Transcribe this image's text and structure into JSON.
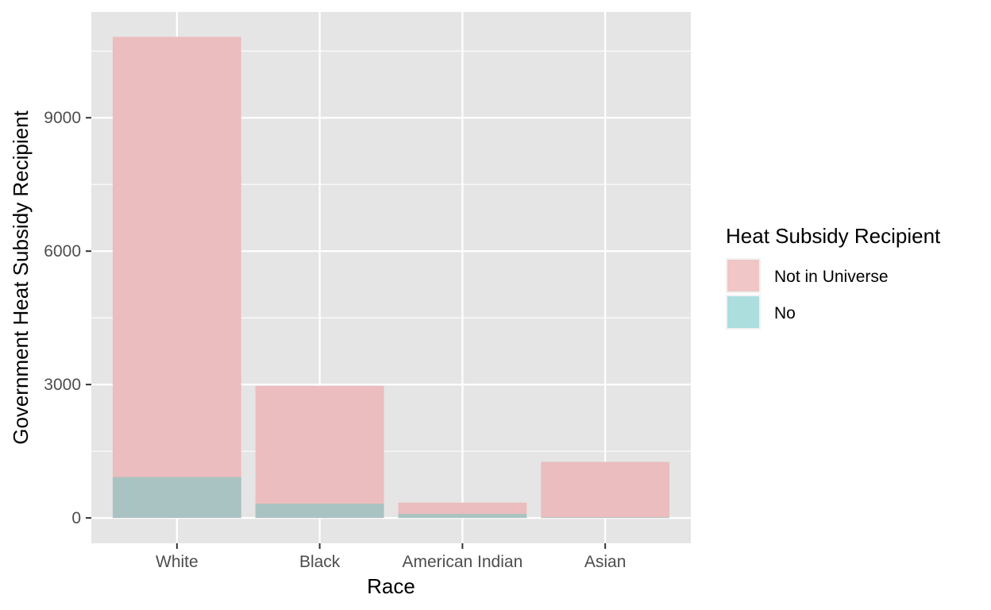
{
  "chart_data": {
    "type": "bar",
    "bar_mode": "overlay",
    "categories": [
      "White",
      "Black",
      "American Indian",
      "Asian"
    ],
    "series": [
      {
        "name": "Not in Universe",
        "values": [
          10820,
          2970,
          345,
          1260
        ],
        "color": "#ebbdbe"
      },
      {
        "name": "No",
        "values": [
          920,
          320,
          90,
          15
        ],
        "color": "#a9c3c2"
      }
    ],
    "xlabel": "Race",
    "ylabel": "Government Heat Subsidy Recipient",
    "ylim": [
      -570,
      11380
    ],
    "yticks": [
      0,
      3000,
      6000,
      9000
    ],
    "ytick_labels": [
      "0",
      "3000",
      "6000",
      "9000"
    ],
    "grid": true,
    "legend": {
      "title": "Heat Subsidy Recipient",
      "position": "right",
      "entries": [
        {
          "label": "Not in Universe",
          "color": "#f0c6c6"
        },
        {
          "label": "No",
          "color": "#acdede"
        }
      ]
    },
    "panel_color": "#e5e5e5",
    "grid_color": "#ffffff"
  }
}
